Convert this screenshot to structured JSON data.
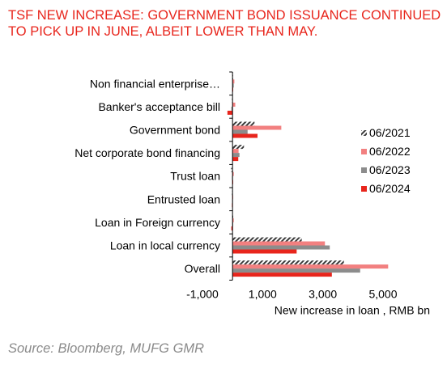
{
  "title": "TSF NEW INCREASE: GOVERNMENT BOND ISSUANCE CONTINUED TO PICK UP IN JUNE, ALBEIT LOWER THAN MAY.",
  "source": "Source: Bloomberg, MUFG GMR",
  "colors": {
    "title": "#e8251c",
    "series_2021": "#3a3a3a",
    "series_2022": "#f28080",
    "series_2023": "#8c8c8c",
    "series_2024": "#e8251c"
  },
  "chart_data": {
    "type": "bar",
    "orientation": "horizontal",
    "categories": [
      "Non financial enterprise…",
      "Banker's acceptance bill",
      "Government bond",
      "Net corporate bond financing",
      "Trust loan",
      "Entrusted loan",
      "Loan in Foreign currency",
      "Loan in local currency",
      "Overall"
    ],
    "series": [
      {
        "name": "06/2021",
        "pattern": "hatched",
        "values": [
          10,
          -20,
          730,
          380,
          -50,
          -20,
          10,
          2300,
          3700
        ]
      },
      {
        "name": "06/2022",
        "values": [
          60,
          90,
          1620,
          200,
          40,
          10,
          40,
          3070,
          5170
        ]
      },
      {
        "name": "06/2023",
        "values": [
          40,
          -40,
          500,
          230,
          -20,
          -10,
          10,
          3230,
          4240
        ]
      },
      {
        "name": "06/2024",
        "values": [
          20,
          -170,
          830,
          190,
          20,
          -20,
          -40,
          2130,
          3300
        ]
      }
    ],
    "xlabel": "New increase in loan  , RMB bn",
    "xlim": [
      -1000,
      5600
    ],
    "xticks": [
      -1000,
      1000,
      3000,
      5000
    ],
    "xtick_labels": [
      "-1,000",
      "1,000",
      "3,000",
      "5,000"
    ],
    "grid": false,
    "legend_position": "right"
  }
}
